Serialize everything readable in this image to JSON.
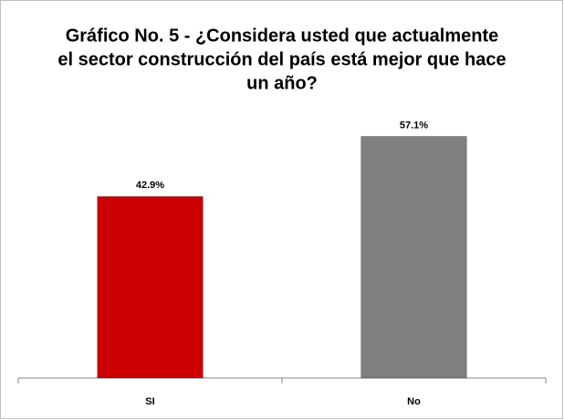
{
  "chart_data": {
    "type": "bar",
    "title": [
      "Gráfico No. 5 - ¿Considera usted que actualmente",
      "el sector construcción del país está mejor que hace",
      "un año?"
    ],
    "categories": [
      "SI",
      "No"
    ],
    "values": [
      42.9,
      57.1
    ],
    "value_labels": [
      "42.9%",
      "57.1%"
    ],
    "colors": [
      "#cc0000",
      "#808080"
    ],
    "ylim": [
      0,
      60
    ]
  }
}
